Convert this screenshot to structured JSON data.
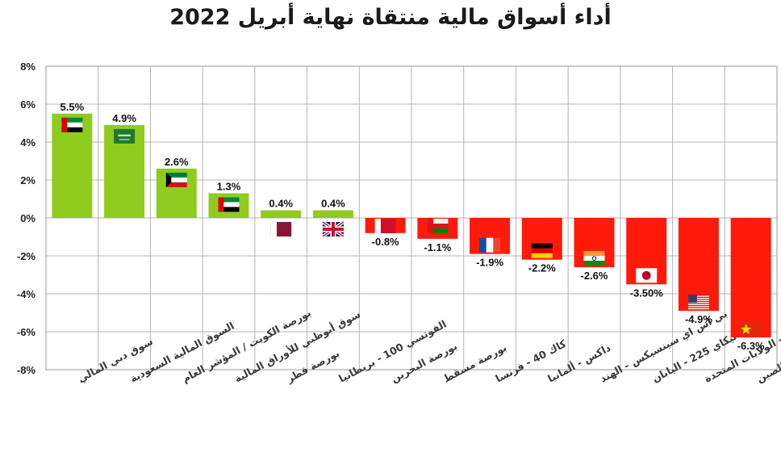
{
  "chart_data": {
    "type": "bar",
    "title": "أداء أسواق مالية منتقاة نهاية أبريل 2022",
    "xlabel": "",
    "ylabel": "",
    "ylim": [
      -8,
      8
    ],
    "yticks": [
      "8%",
      "6%",
      "4%",
      "2%",
      "0%",
      "-2%",
      "-4%",
      "-6%",
      "-8%"
    ],
    "grid": true,
    "categories": [
      "سوق دبي المالي",
      "السوق المالية السعودية",
      "بورصة الكويت / المؤشر العام",
      "سوق أبوظبي للأوراق المالية",
      "بورصة قطر",
      "الفوتسي 100 - بريطانيا",
      "بورصة البحرين",
      "بورصة مسقط",
      "كاك 40 - فرنسا",
      "داكس - ألمانيا",
      "بي اس اي سينسيكس - الهند",
      "نيكاي 225 - اليابان",
      "داوجونز - الولايات المتحدة",
      "اس اس اي كومبوسيت - الصين"
    ],
    "values": [
      5.5,
      4.9,
      2.6,
      1.3,
      0.4,
      0.4,
      -0.8,
      -1.1,
      -1.9,
      -2.2,
      -2.6,
      -3.5,
      -4.9,
      -6.3
    ],
    "value_labels": [
      "5.5%",
      "4.9%",
      "2.6%",
      "1.3%",
      "0.4%",
      "0.4%",
      "-0.8%",
      "-1.1%",
      "-1.9%",
      "-2.2%",
      "-2.6%",
      "-3.50%",
      "-4.9%",
      "-6.3%"
    ],
    "flags": [
      "uae-flag-icon",
      "saudi-flag-icon",
      "kuwait-flag-icon",
      "uae-flag-icon",
      "qatar-flag-icon",
      "uk-flag-icon",
      "bahrain-flag-icon",
      "oman-flag-icon",
      "france-flag-icon",
      "germany-flag-icon",
      "india-flag-icon",
      "japan-flag-icon",
      "usa-flag-icon",
      "china-flag-icon"
    ],
    "colors": {
      "positive": "#8fcc1e",
      "negative": "#ff1a0a",
      "grid": "#b4b4b4"
    }
  }
}
